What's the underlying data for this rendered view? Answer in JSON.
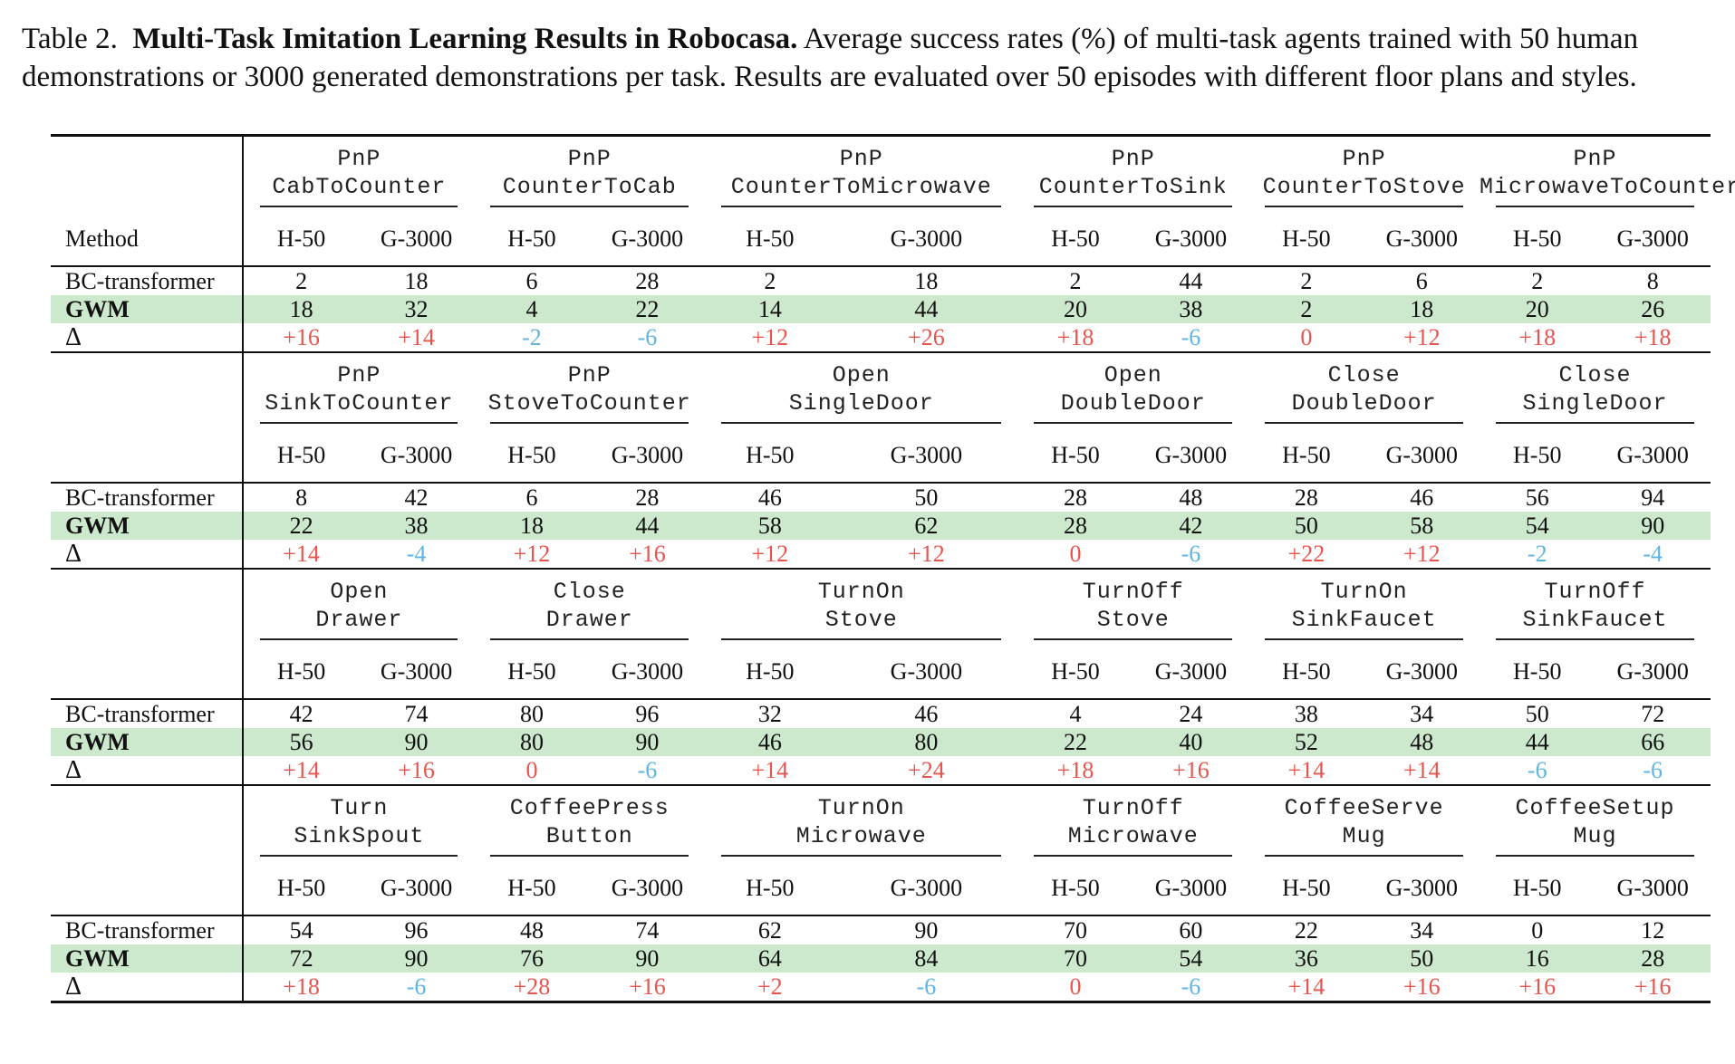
{
  "caption": {
    "label": "Table 2.",
    "title": "Multi-Task Imitation Learning Results in Robocasa.",
    "text": "Average success rates (%) of multi-task agents trained with 50 human demonstrations or 3000 generated demonstrations per task. Results are evaluated over 50 episodes with different floor plans and styles.",
    "line1_rest": "Average success rates (%) of multi-task agents trained with 50 human",
    "line2": "demonstrations or 3000 generated demonstrations per task. Results are evaluated over 50 episodes with different floor plans and styles."
  },
  "table": {
    "method_header": "Method",
    "sub_h": "H-50",
    "sub_g": "G-3000",
    "rows_labels": {
      "bc": "BC-transformer",
      "gwm": "GWM",
      "delta": "Δ"
    },
    "blocks": [
      {
        "tasks": [
          {
            "l1": "PnP",
            "l2": "CabToCounter",
            "bc": [
              2,
              18
            ],
            "gwm": [
              18,
              32
            ],
            "delta": [
              "+16",
              "+14"
            ]
          },
          {
            "l1": "PnP",
            "l2": "CounterToCab",
            "bc": [
              6,
              28
            ],
            "gwm": [
              4,
              22
            ],
            "delta": [
              "-2",
              "-6"
            ]
          },
          {
            "l1": "PnP",
            "l2": "CounterToMicrowave",
            "bc": [
              2,
              18
            ],
            "gwm": [
              14,
              44
            ],
            "delta": [
              "+12",
              "+26"
            ]
          },
          {
            "l1": "PnP",
            "l2": "CounterToSink",
            "bc": [
              2,
              44
            ],
            "gwm": [
              20,
              38
            ],
            "delta": [
              "+18",
              "-6"
            ]
          },
          {
            "l1": "PnP",
            "l2": "CounterToStove",
            "bc": [
              2,
              6
            ],
            "gwm": [
              2,
              18
            ],
            "delta": [
              "0",
              "+12"
            ]
          },
          {
            "l1": "PnP",
            "l2": "MicrowaveToCounter",
            "bc": [
              2,
              8
            ],
            "gwm": [
              20,
              26
            ],
            "delta": [
              "+18",
              "+18"
            ]
          }
        ]
      },
      {
        "tasks": [
          {
            "l1": "PnP",
            "l2": "SinkToCounter",
            "bc": [
              8,
              42
            ],
            "gwm": [
              22,
              38
            ],
            "delta": [
              "+14",
              "-4"
            ]
          },
          {
            "l1": "PnP",
            "l2": "StoveToCounter",
            "bc": [
              6,
              28
            ],
            "gwm": [
              18,
              44
            ],
            "delta": [
              "+12",
              "+16"
            ]
          },
          {
            "l1": "Open",
            "l2": "SingleDoor",
            "bc": [
              46,
              50
            ],
            "gwm": [
              58,
              62
            ],
            "delta": [
              "+12",
              "+12"
            ]
          },
          {
            "l1": "Open",
            "l2": "DoubleDoor",
            "bc": [
              28,
              48
            ],
            "gwm": [
              28,
              42
            ],
            "delta": [
              "0",
              "-6"
            ]
          },
          {
            "l1": "Close",
            "l2": "DoubleDoor",
            "bc": [
              28,
              46
            ],
            "gwm": [
              50,
              58
            ],
            "delta": [
              "+22",
              "+12"
            ]
          },
          {
            "l1": "Close",
            "l2": "SingleDoor",
            "bc": [
              56,
              94
            ],
            "gwm": [
              54,
              90
            ],
            "delta": [
              "-2",
              "-4"
            ]
          }
        ]
      },
      {
        "tasks": [
          {
            "l1": "Open",
            "l2": "Drawer",
            "bc": [
              42,
              74
            ],
            "gwm": [
              56,
              90
            ],
            "delta": [
              "+14",
              "+16"
            ]
          },
          {
            "l1": "Close",
            "l2": "Drawer",
            "bc": [
              80,
              96
            ],
            "gwm": [
              80,
              90
            ],
            "delta": [
              "0",
              "-6"
            ]
          },
          {
            "l1": "TurnOn",
            "l2": "Stove",
            "bc": [
              32,
              46
            ],
            "gwm": [
              46,
              80
            ],
            "delta": [
              "+14",
              "+24"
            ]
          },
          {
            "l1": "TurnOff",
            "l2": "Stove",
            "bc": [
              4,
              24
            ],
            "gwm": [
              22,
              40
            ],
            "delta": [
              "+18",
              "+16"
            ]
          },
          {
            "l1": "TurnOn",
            "l2": "SinkFaucet",
            "bc": [
              38,
              34
            ],
            "gwm": [
              52,
              48
            ],
            "delta": [
              "+14",
              "+14"
            ]
          },
          {
            "l1": "TurnOff",
            "l2": "SinkFaucet",
            "bc": [
              50,
              72
            ],
            "gwm": [
              44,
              66
            ],
            "delta": [
              "-6",
              "-6"
            ]
          }
        ]
      },
      {
        "tasks": [
          {
            "l1": "Turn",
            "l2": "SinkSpout",
            "bc": [
              54,
              96
            ],
            "gwm": [
              72,
              90
            ],
            "delta": [
              "+18",
              "-6"
            ]
          },
          {
            "l1": "CoffeePress",
            "l2": "Button",
            "bc": [
              48,
              74
            ],
            "gwm": [
              76,
              90
            ],
            "delta": [
              "+28",
              "+16"
            ]
          },
          {
            "l1": "TurnOn",
            "l2": "Microwave",
            "bc": [
              62,
              90
            ],
            "gwm": [
              64,
              84
            ],
            "delta": [
              "+2",
              "-6"
            ]
          },
          {
            "l1": "TurnOff",
            "l2": "Microwave",
            "bc": [
              70,
              60
            ],
            "gwm": [
              70,
              54
            ],
            "delta": [
              "0",
              "-6"
            ]
          },
          {
            "l1": "CoffeeServe",
            "l2": "Mug",
            "bc": [
              22,
              34
            ],
            "gwm": [
              36,
              50
            ],
            "delta": [
              "+14",
              "+16"
            ]
          },
          {
            "l1": "CoffeeSetup",
            "l2": "Mug",
            "bc": [
              0,
              12
            ],
            "gwm": [
              16,
              28
            ],
            "delta": [
              "+16",
              "+16"
            ]
          }
        ]
      }
    ]
  }
}
